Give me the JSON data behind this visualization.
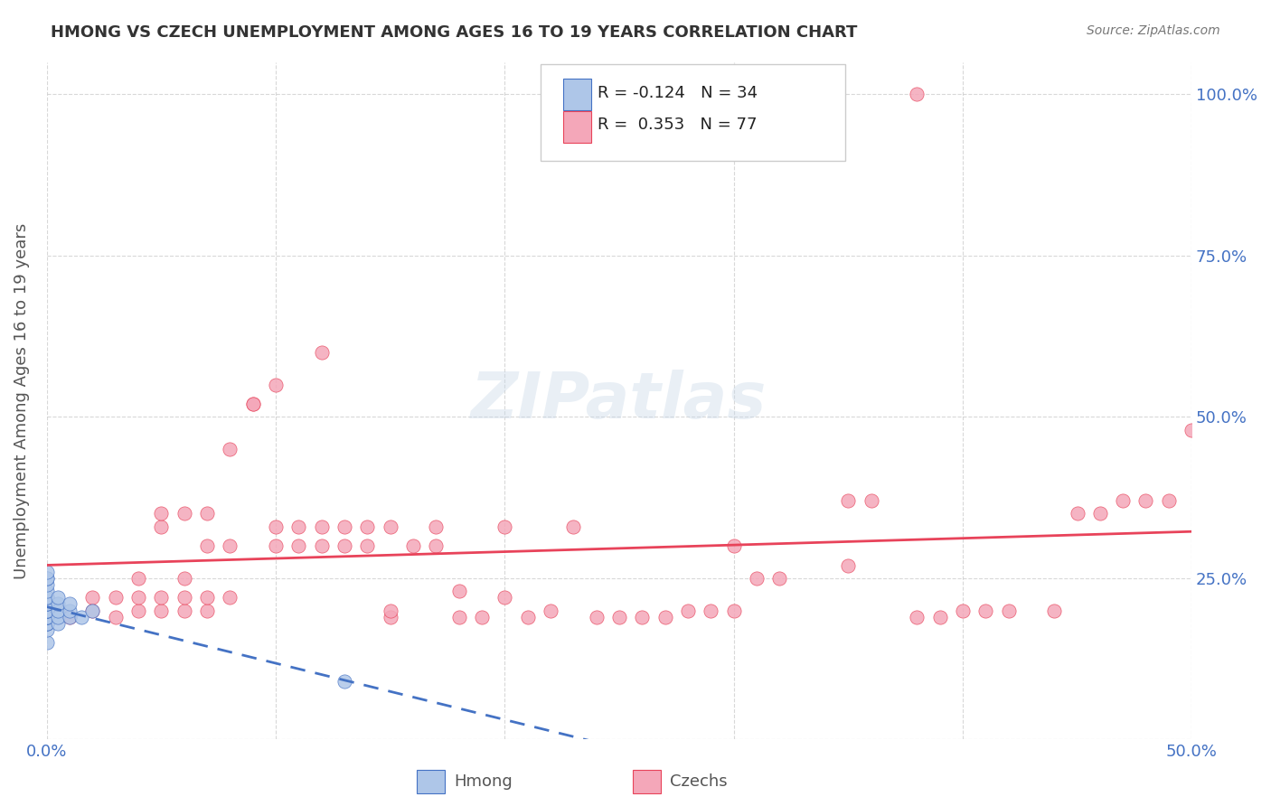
{
  "title": "HMONG VS CZECH UNEMPLOYMENT AMONG AGES 16 TO 19 YEARS CORRELATION CHART",
  "source": "Source: ZipAtlas.com",
  "xlabel": "",
  "ylabel": "Unemployment Among Ages 16 to 19 years",
  "xlim": [
    0.0,
    0.5
  ],
  "ylim": [
    0.0,
    1.05
  ],
  "xticks": [
    0.0,
    0.1,
    0.2,
    0.3,
    0.4,
    0.5
  ],
  "xticklabels": [
    "0.0%",
    "",
    "",
    "",
    "",
    "50.0%"
  ],
  "yticks_right": [
    0.0,
    0.25,
    0.5,
    0.75,
    1.0
  ],
  "yticklabels_right": [
    "",
    "25.0%",
    "50.0%",
    "75.0%",
    "100.0%"
  ],
  "legend_r_hmong": "-0.124",
  "legend_n_hmong": "34",
  "legend_r_czech": "0.353",
  "legend_n_czech": "77",
  "hmong_color": "#aec6e8",
  "czech_color": "#f4a7b9",
  "hmong_line_color": "#4472c4",
  "czech_line_color": "#e8435a",
  "grid_color": "#c8c8c8",
  "watermark": "ZIPatlas",
  "hmong_x": [
    0.0,
    0.0,
    0.0,
    0.0,
    0.0,
    0.0,
    0.0,
    0.0,
    0.0,
    0.0,
    0.0,
    0.0,
    0.0,
    0.0,
    0.0,
    0.0,
    0.0,
    0.0,
    0.0,
    0.0,
    0.005,
    0.005,
    0.005,
    0.005,
    0.005,
    0.01,
    0.01,
    0.01,
    0.015,
    0.02,
    0.13,
    0.0,
    0.0,
    0.0
  ],
  "hmong_y": [
    0.15,
    0.17,
    0.18,
    0.18,
    0.18,
    0.19,
    0.19,
    0.19,
    0.19,
    0.2,
    0.2,
    0.2,
    0.2,
    0.21,
    0.21,
    0.21,
    0.22,
    0.22,
    0.23,
    0.24,
    0.18,
    0.19,
    0.2,
    0.21,
    0.22,
    0.19,
    0.2,
    0.21,
    0.19,
    0.2,
    0.09,
    0.25,
    0.25,
    0.26
  ],
  "czech_x": [
    0.01,
    0.02,
    0.02,
    0.03,
    0.03,
    0.04,
    0.04,
    0.04,
    0.05,
    0.05,
    0.05,
    0.05,
    0.06,
    0.06,
    0.06,
    0.06,
    0.07,
    0.07,
    0.07,
    0.07,
    0.08,
    0.08,
    0.08,
    0.09,
    0.09,
    0.1,
    0.1,
    0.1,
    0.11,
    0.11,
    0.12,
    0.12,
    0.12,
    0.13,
    0.13,
    0.14,
    0.14,
    0.15,
    0.15,
    0.15,
    0.16,
    0.17,
    0.17,
    0.18,
    0.18,
    0.19,
    0.2,
    0.2,
    0.21,
    0.22,
    0.23,
    0.24,
    0.25,
    0.26,
    0.27,
    0.28,
    0.29,
    0.3,
    0.3,
    0.31,
    0.32,
    0.35,
    0.36,
    0.38,
    0.39,
    0.4,
    0.41,
    0.42,
    0.44,
    0.45,
    0.46,
    0.47,
    0.48,
    0.49,
    0.5,
    0.35,
    0.38
  ],
  "czech_y": [
    0.19,
    0.2,
    0.22,
    0.19,
    0.22,
    0.2,
    0.22,
    0.25,
    0.2,
    0.22,
    0.33,
    0.35,
    0.2,
    0.22,
    0.25,
    0.35,
    0.2,
    0.22,
    0.3,
    0.35,
    0.22,
    0.3,
    0.45,
    0.52,
    0.52,
    0.3,
    0.33,
    0.55,
    0.3,
    0.33,
    0.3,
    0.33,
    0.6,
    0.3,
    0.33,
    0.3,
    0.33,
    0.19,
    0.2,
    0.33,
    0.3,
    0.3,
    0.33,
    0.19,
    0.23,
    0.19,
    0.22,
    0.33,
    0.19,
    0.2,
    0.33,
    0.19,
    0.19,
    0.19,
    0.19,
    0.2,
    0.2,
    0.2,
    0.3,
    0.25,
    0.25,
    0.37,
    0.37,
    0.19,
    0.19,
    0.2,
    0.2,
    0.2,
    0.2,
    0.35,
    0.35,
    0.37,
    0.37,
    0.37,
    0.48,
    0.27,
    1.0
  ]
}
